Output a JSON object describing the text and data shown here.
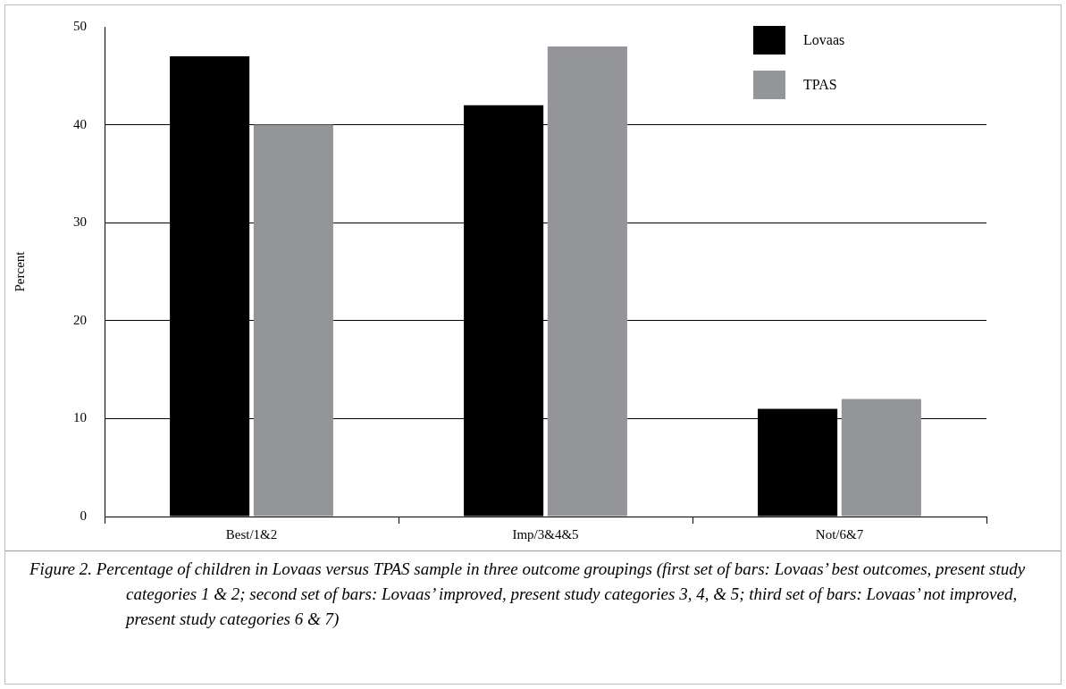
{
  "chart_data": {
    "type": "bar",
    "ylabel": "Percent",
    "categories": [
      "Best/1&2",
      "Imp/3&4&5",
      "Not/6&7"
    ],
    "series": [
      {
        "name": "Lovaas",
        "color": "#000000",
        "values": [
          47,
          42,
          11
        ]
      },
      {
        "name": "TPAS",
        "color": "#939598",
        "values": [
          40,
          48,
          12
        ]
      }
    ],
    "ylim": [
      0,
      50
    ],
    "yticks": [
      0,
      10,
      20,
      30,
      40,
      50
    ],
    "grid": "y",
    "legend": "top right",
    "annotations": [
      "Figure 2. Percentage of children in Lovaas versus TPAS sample in three outcome groupings (first set of bars: Lovaas’ best outcomes, present study categories 1 & 2; second set of bars: Lovaas’ improved, present study categories 3, 4, & 5; third set of bars: Lovaas’ not improved, present study categories 6 & 7)"
    ]
  }
}
